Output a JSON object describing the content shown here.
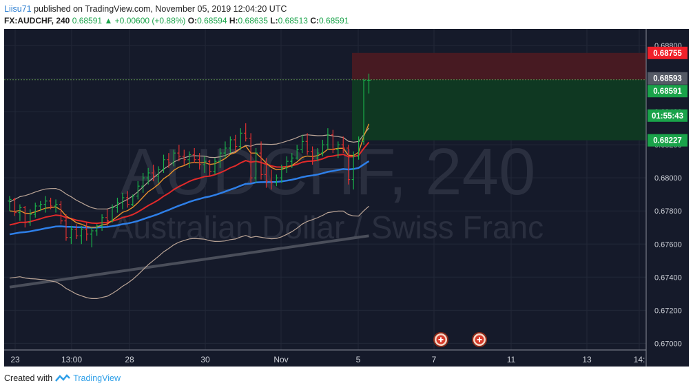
{
  "header": {
    "user": "Liisu71",
    "published": "published on TradingView.com, November 05, 2019 12:04:20 UTC",
    "symbol": "FX:AUDCHF, 240",
    "last": "0.68591",
    "arrow": "▲",
    "change": "+0.00600 (+0.88%)",
    "o_label": "O:",
    "o": "0.68594",
    "h_label": "H:",
    "h": "0.68635",
    "l_label": "L:",
    "l": "0.68513",
    "c_label": "C:",
    "c": "0.68591"
  },
  "watermark": {
    "symbol": "AUDCHF, 240",
    "name": "Australian Dollar / Swiss Franc"
  },
  "footer": {
    "created": "Created with",
    "brand": "TradingView"
  },
  "colors": {
    "background": "#151a2a",
    "stop_zone": "#4a1a22",
    "target_zone": "#0f3a22",
    "ema_fast": "#e8912c",
    "ema_mid": "#e22a2a",
    "ema_slow": "#2e7fe8",
    "sma_long": "#4a4e5a",
    "bb": "#bba597",
    "bull": "#1ab04a",
    "bear": "#e03030"
  },
  "chart_data": {
    "type": "candlestick",
    "title": "FX:AUDCHF, 240",
    "ylim": [
      0.6696,
      0.689
    ],
    "y_ticks": [
      "0.68800",
      "0.68600",
      "0.68400",
      "0.68200",
      "0.68000",
      "0.67800",
      "0.67600",
      "0.67400",
      "0.67200",
      "0.67000"
    ],
    "x_ticks": [
      "23",
      "13:00",
      "28",
      "30",
      "Nov",
      "5",
      "7",
      "11",
      "13",
      "14:"
    ],
    "price_labels": [
      {
        "text": "0.68755",
        "value": 0.68755,
        "color": "#f0202a"
      },
      {
        "text": "0.68593",
        "value": 0.68593,
        "color": "#555a66"
      },
      {
        "text": "0.68591",
        "value": 0.68591,
        "color": "#1aa34a"
      },
      {
        "text": "01:55:43",
        "value": 0.68522,
        "color": "#1aa34a"
      },
      {
        "text": "0.68227",
        "value": 0.68227,
        "color": "#1aa34a"
      }
    ],
    "position": {
      "entry": 0.68593,
      "stop": 0.68755,
      "target": 0.68227
    },
    "events": 2,
    "candles": [
      [
        0.6786,
        0.6789,
        0.678,
        0.6787
      ],
      [
        0.6787,
        0.6788,
        0.6777,
        0.6779
      ],
      [
        0.6779,
        0.6784,
        0.6774,
        0.6782
      ],
      [
        0.6782,
        0.6783,
        0.677,
        0.6773
      ],
      [
        0.6773,
        0.6781,
        0.6771,
        0.6778
      ],
      [
        0.6778,
        0.6785,
        0.6776,
        0.6783
      ],
      [
        0.6783,
        0.6786,
        0.678,
        0.6784
      ],
      [
        0.6784,
        0.6789,
        0.6779,
        0.6786
      ],
      [
        0.6786,
        0.6788,
        0.6781,
        0.6783
      ],
      [
        0.6783,
        0.6787,
        0.6779,
        0.6784
      ],
      [
        0.6784,
        0.6786,
        0.6772,
        0.6774
      ],
      [
        0.6774,
        0.6778,
        0.6762,
        0.6764
      ],
      [
        0.6764,
        0.6771,
        0.676,
        0.6769
      ],
      [
        0.6769,
        0.6772,
        0.6763,
        0.6765
      ],
      [
        0.6765,
        0.6771,
        0.676,
        0.6769
      ],
      [
        0.6769,
        0.6773,
        0.6762,
        0.6766
      ],
      [
        0.6766,
        0.677,
        0.6758,
        0.6768
      ],
      [
        0.6768,
        0.6772,
        0.6765,
        0.6771
      ],
      [
        0.6771,
        0.6778,
        0.6768,
        0.6776
      ],
      [
        0.6776,
        0.6781,
        0.6771,
        0.6774
      ],
      [
        0.6774,
        0.6784,
        0.6773,
        0.6782
      ],
      [
        0.6782,
        0.6788,
        0.6779,
        0.6785
      ],
      [
        0.6785,
        0.6791,
        0.6781,
        0.6788
      ],
      [
        0.6788,
        0.6792,
        0.6782,
        0.6784
      ],
      [
        0.6784,
        0.679,
        0.6783,
        0.6789
      ],
      [
        0.6789,
        0.6798,
        0.6787,
        0.6795
      ],
      [
        0.6795,
        0.6803,
        0.6791,
        0.68
      ],
      [
        0.68,
        0.6806,
        0.6796,
        0.6803
      ],
      [
        0.6803,
        0.6808,
        0.6798,
        0.6801
      ],
      [
        0.6801,
        0.6807,
        0.6797,
        0.6805
      ],
      [
        0.6805,
        0.6814,
        0.6803,
        0.6811
      ],
      [
        0.6811,
        0.6815,
        0.6806,
        0.6809
      ],
      [
        0.6809,
        0.6817,
        0.6807,
        0.6815
      ],
      [
        0.6815,
        0.682,
        0.681,
        0.6813
      ],
      [
        0.6813,
        0.6817,
        0.6808,
        0.6811
      ],
      [
        0.6811,
        0.6816,
        0.6806,
        0.6814
      ],
      [
        0.6814,
        0.6818,
        0.6809,
        0.6811
      ],
      [
        0.6811,
        0.6815,
        0.6805,
        0.6808
      ],
      [
        0.6808,
        0.6813,
        0.6803,
        0.681
      ],
      [
        0.681,
        0.6811,
        0.6801,
        0.6804
      ],
      [
        0.6804,
        0.6812,
        0.6802,
        0.681
      ],
      [
        0.681,
        0.6818,
        0.6806,
        0.6815
      ],
      [
        0.6815,
        0.6822,
        0.6812,
        0.6818
      ],
      [
        0.6818,
        0.6825,
        0.6815,
        0.6823
      ],
      [
        0.6823,
        0.6826,
        0.6816,
        0.6819
      ],
      [
        0.6819,
        0.683,
        0.6817,
        0.6827
      ],
      [
        0.6827,
        0.6833,
        0.6822,
        0.6824
      ],
      [
        0.6824,
        0.6827,
        0.6797,
        0.68
      ],
      [
        0.68,
        0.6818,
        0.6797,
        0.6815
      ],
      [
        0.6815,
        0.6822,
        0.6799,
        0.6802
      ],
      [
        0.6802,
        0.6812,
        0.6794,
        0.6798
      ],
      [
        0.6798,
        0.6805,
        0.6793,
        0.6797
      ],
      [
        0.6797,
        0.6802,
        0.6795,
        0.68
      ],
      [
        0.68,
        0.6808,
        0.6797,
        0.6806
      ],
      [
        0.6806,
        0.6813,
        0.6803,
        0.681
      ],
      [
        0.681,
        0.6815,
        0.6806,
        0.6812
      ],
      [
        0.6812,
        0.682,
        0.6811,
        0.6817
      ],
      [
        0.6817,
        0.6826,
        0.6815,
        0.6822
      ],
      [
        0.6822,
        0.6827,
        0.6814,
        0.6816
      ],
      [
        0.6816,
        0.6819,
        0.6808,
        0.6812
      ],
      [
        0.6812,
        0.6818,
        0.681,
        0.6815
      ],
      [
        0.6815,
        0.6823,
        0.6813,
        0.682
      ],
      [
        0.682,
        0.683,
        0.6817,
        0.6826
      ],
      [
        0.6826,
        0.6829,
        0.6815,
        0.6817
      ],
      [
        0.6817,
        0.6822,
        0.6812,
        0.682
      ],
      [
        0.682,
        0.6825,
        0.6815,
        0.6818
      ],
      [
        0.6818,
        0.682,
        0.6796,
        0.6799
      ],
      [
        0.6799,
        0.6816,
        0.6793,
        0.6813
      ],
      [
        0.6813,
        0.6825,
        0.6811,
        0.6822
      ],
      [
        0.6822,
        0.686,
        0.682,
        0.6859
      ],
      [
        0.6859,
        0.6863,
        0.6851,
        0.6859
      ]
    ]
  }
}
